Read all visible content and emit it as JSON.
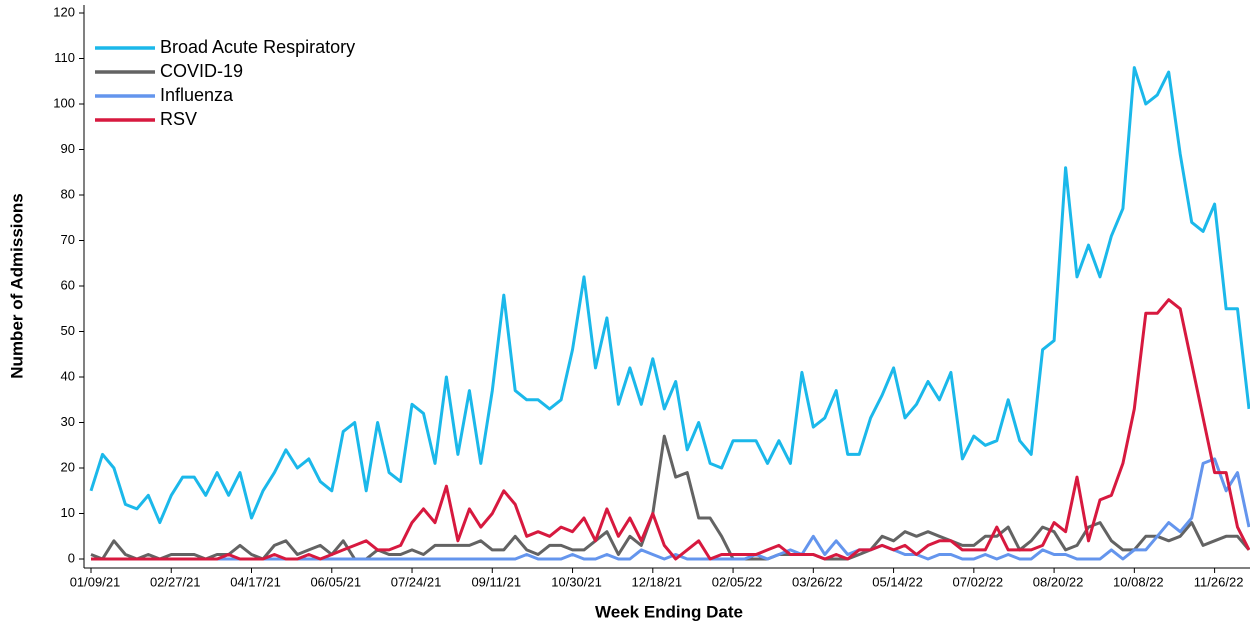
{
  "chart_data": {
    "type": "line",
    "xlabel": "Week Ending Date",
    "ylabel": "Number of Admissions",
    "categories": [
      "01/09/21",
      null,
      null,
      null,
      null,
      null,
      null,
      "02/27/21",
      null,
      null,
      null,
      null,
      null,
      null,
      "04/17/21",
      null,
      null,
      null,
      null,
      null,
      null,
      "06/05/21",
      null,
      null,
      null,
      null,
      null,
      null,
      "07/24/21",
      null,
      null,
      null,
      null,
      null,
      null,
      "09/11/21",
      null,
      null,
      null,
      null,
      null,
      null,
      "10/30/21",
      null,
      null,
      null,
      null,
      null,
      null,
      "12/18/21",
      null,
      null,
      null,
      null,
      null,
      null,
      "02/05/22",
      null,
      null,
      null,
      null,
      null,
      null,
      "03/26/22",
      null,
      null,
      null,
      null,
      null,
      null,
      "05/14/22",
      null,
      null,
      null,
      null,
      null,
      null,
      "07/02/22",
      null,
      null,
      null,
      null,
      null,
      null,
      "08/20/22",
      null,
      null,
      null,
      null,
      null,
      null,
      "10/08/22",
      null,
      null,
      null,
      null,
      null,
      null,
      "11/26/22",
      null,
      null,
      null
    ],
    "ylim": [
      0,
      120
    ],
    "yticks": [
      0,
      10,
      20,
      30,
      40,
      50,
      60,
      70,
      80,
      90,
      100,
      110,
      120
    ],
    "legend": "top-left",
    "series": [
      {
        "name": "Broad Acute Respiratory",
        "color": "#1bb8ea",
        "values": [
          15,
          23,
          20,
          12,
          11,
          14,
          8,
          14,
          18,
          18,
          14,
          19,
          14,
          19,
          9,
          15,
          19,
          24,
          20,
          22,
          17,
          15,
          28,
          30,
          15,
          30,
          19,
          17,
          34,
          32,
          21,
          40,
          23,
          37,
          21,
          37,
          58,
          37,
          35,
          35,
          33,
          35,
          46,
          62,
          42,
          53,
          34,
          42,
          34,
          44,
          33,
          39,
          24,
          30,
          21,
          20,
          26,
          26,
          26,
          21,
          26,
          21,
          41,
          29,
          31,
          37,
          23,
          23,
          31,
          36,
          42,
          31,
          34,
          39,
          35,
          41,
          22,
          27,
          25,
          26,
          35,
          26,
          23,
          46,
          48,
          86,
          62,
          69,
          62,
          71,
          77,
          108,
          100,
          102,
          107,
          89,
          74,
          72,
          78,
          55,
          55,
          33
        ]
      },
      {
        "name": "COVID-19",
        "color": "#636363",
        "values": [
          1,
          0,
          4,
          1,
          0,
          1,
          0,
          1,
          1,
          1,
          0,
          1,
          1,
          3,
          1,
          0,
          3,
          4,
          1,
          2,
          3,
          1,
          4,
          0,
          0,
          2,
          1,
          1,
          2,
          1,
          3,
          3,
          3,
          3,
          4,
          2,
          2,
          5,
          2,
          1,
          3,
          3,
          2,
          2,
          4,
          6,
          1,
          5,
          3,
          10,
          27,
          18,
          19,
          9,
          9,
          5,
          0,
          0,
          0,
          0,
          1,
          1,
          1,
          1,
          0,
          0,
          0,
          1,
          2,
          5,
          4,
          6,
          5,
          6,
          5,
          4,
          3,
          3,
          5,
          5,
          7,
          2,
          4,
          7,
          6,
          2,
          3,
          7,
          8,
          4,
          2,
          2,
          5,
          5,
          4,
          5,
          8,
          3,
          4,
          5,
          5,
          2
        ]
      },
      {
        "name": "Influenza",
        "color": "#6495ed",
        "values": [
          0,
          0,
          0,
          0,
          0,
          0,
          0,
          0,
          0,
          0,
          0,
          0,
          0,
          0,
          0,
          0,
          0,
          0,
          0,
          0,
          0,
          0,
          0,
          0,
          0,
          0,
          0,
          0,
          0,
          0,
          0,
          0,
          0,
          0,
          0,
          0,
          0,
          0,
          1,
          0,
          0,
          0,
          1,
          0,
          0,
          1,
          0,
          0,
          2,
          1,
          0,
          1,
          0,
          0,
          0,
          0,
          0,
          0,
          1,
          0,
          1,
          2,
          1,
          5,
          1,
          4,
          1,
          2,
          2,
          3,
          2,
          1,
          1,
          0,
          1,
          1,
          0,
          0,
          1,
          0,
          1,
          0,
          0,
          2,
          1,
          1,
          0,
          0,
          0,
          2,
          0,
          2,
          2,
          5,
          8,
          6,
          9,
          21,
          22,
          15,
          19,
          7
        ]
      },
      {
        "name": "RSV",
        "color": "#d7193f",
        "values": [
          0,
          0,
          0,
          0,
          0,
          0,
          0,
          0,
          0,
          0,
          0,
          0,
          1,
          0,
          0,
          0,
          1,
          0,
          0,
          1,
          0,
          1,
          2,
          3,
          4,
          2,
          2,
          3,
          8,
          11,
          8,
          16,
          4,
          11,
          7,
          10,
          15,
          12,
          5,
          6,
          5,
          7,
          6,
          9,
          4,
          11,
          5,
          9,
          4,
          10,
          3,
          0,
          2,
          4,
          0,
          1,
          1,
          1,
          1,
          2,
          3,
          1,
          1,
          1,
          0,
          1,
          0,
          2,
          2,
          3,
          2,
          3,
          1,
          3,
          4,
          4,
          2,
          2,
          2,
          7,
          2,
          2,
          2,
          3,
          8,
          6,
          18,
          4,
          13,
          14,
          21,
          33,
          54,
          54,
          57,
          55,
          43,
          31,
          19,
          19,
          7,
          2
        ]
      }
    ]
  }
}
